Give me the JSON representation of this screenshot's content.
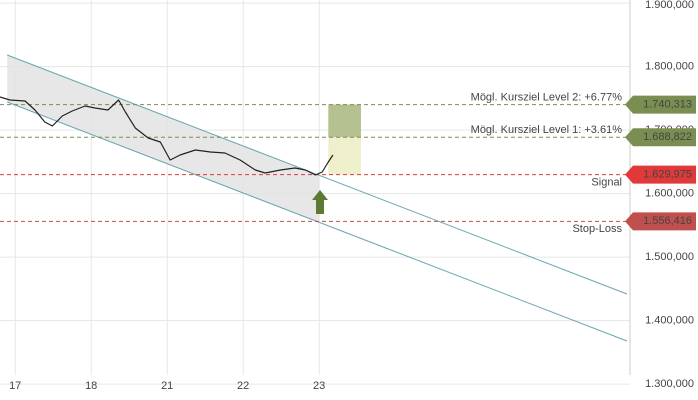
{
  "chart_data": {
    "type": "line",
    "xlim": [
      -0.2,
      8.09
    ],
    "ylim": [
      1275,
      1905
    ],
    "xticks": [
      {
        "value": 0,
        "label": "17"
      },
      {
        "value": 1,
        "label": "18"
      },
      {
        "value": 2,
        "label": "21"
      },
      {
        "value": 3,
        "label": "22"
      },
      {
        "value": 4,
        "label": "23"
      }
    ],
    "yticks": [
      {
        "value": 1900,
        "label": "1.900,000"
      },
      {
        "value": 1800,
        "label": "1.800,000"
      },
      {
        "value": 1700,
        "label": "1.700,000"
      },
      {
        "value": 1600,
        "label": "1.600,000"
      },
      {
        "value": 1500,
        "label": "1.500,000"
      },
      {
        "value": 1400,
        "label": "1.400,000"
      },
      {
        "value": 1300,
        "label": "1.300,000"
      }
    ],
    "grid": true,
    "series": [
      {
        "color": "#222222",
        "x": [
          -0.2,
          -0.07,
          0.13,
          0.26,
          0.39,
          0.49,
          0.62,
          0.75,
          0.92,
          1.05,
          1.22,
          1.36,
          1.45,
          1.58,
          1.75,
          1.91,
          2.04,
          2.17,
          2.37,
          2.57,
          2.76,
          2.96,
          3.16,
          3.29,
          3.49,
          3.68,
          3.82,
          3.95,
          4.04,
          4.12,
          4.18
        ],
        "values": [
          1752.2,
          1747.5,
          1745.9,
          1731.8,
          1712.9,
          1706.6,
          1722.3,
          1730.2,
          1738.1,
          1734.9,
          1731.8,
          1747.5,
          1728.6,
          1703.4,
          1687.7,
          1681.4,
          1653.0,
          1660.9,
          1668.8,
          1665.6,
          1664.0,
          1653.0,
          1637.3,
          1632.5,
          1637.3,
          1640.4,
          1637.3,
          1629.4,
          1634.1,
          1649.9,
          1660.9
        ]
      }
    ],
    "channel": {
      "x": [
        -0.105,
        8.05
      ],
      "upper": [
        1818.4,
        1441.95
      ],
      "lower": [
        1744.35,
        1367.9
      ],
      "color": "#6aa5ae",
      "fill": "#e3e3e3"
    },
    "target_zone": {
      "x": [
        4.12,
        4.55
      ],
      "colors": [
        "#b5c190",
        "#eef0cc"
      ]
    },
    "levels": {
      "labels": [
        "Mögl. Kursziel Level 2: +6.77%",
        "Mögl. Kursziel Level 1: +3.61%",
        "Signal",
        "Stop-Loss"
      ],
      "values": [
        1740.313,
        1688.822,
        1629.975,
        1556.416
      ],
      "value_labels": [
        "1.740,313",
        "1.688,822",
        "1.629,975",
        "1.556,416"
      ],
      "colors": [
        "#7b8e52",
        "#7b8e52",
        "#e0393a",
        "#c0504d"
      ]
    }
  }
}
